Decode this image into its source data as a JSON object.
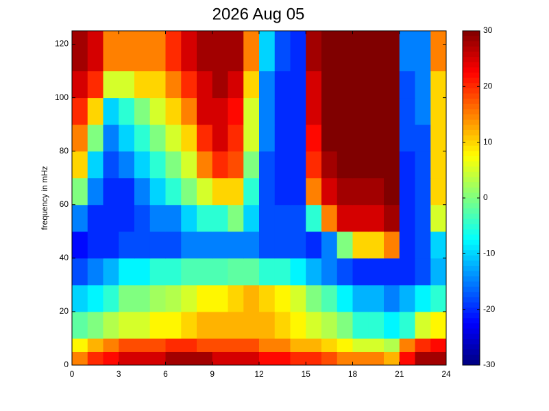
{
  "chart_data": {
    "type": "heatmap",
    "title": "2026 Aug 05",
    "y_label": "frequency in mHz",
    "xbins": [
      0,
      1,
      2,
      3,
      4,
      5,
      6,
      7,
      8,
      9,
      10,
      11,
      12,
      13,
      14,
      15,
      16,
      17,
      18,
      19,
      20,
      21,
      22,
      23,
      24
    ],
    "ybins": [
      0,
      5,
      10,
      20,
      30,
      40,
      50,
      60,
      70,
      80,
      90,
      100,
      110,
      125
    ],
    "z": [
      [
        15,
        20,
        22,
        25,
        25,
        25,
        28,
        28,
        28,
        25,
        25,
        25,
        22,
        22,
        20,
        20,
        18,
        15,
        15,
        15,
        12,
        22,
        28,
        28
      ],
      [
        8,
        12,
        15,
        18,
        18,
        18,
        20,
        20,
        18,
        18,
        18,
        18,
        15,
        15,
        12,
        12,
        10,
        8,
        5,
        5,
        3,
        15,
        20,
        22
      ],
      [
        -2,
        0,
        3,
        5,
        5,
        8,
        8,
        10,
        12,
        12,
        12,
        12,
        12,
        10,
        8,
        5,
        3,
        0,
        -5,
        -5,
        -8,
        -5,
        5,
        8
      ],
      [
        -10,
        -8,
        -5,
        0,
        0,
        2,
        3,
        5,
        8,
        8,
        10,
        12,
        10,
        8,
        5,
        0,
        -3,
        -8,
        -12,
        -12,
        -15,
        -12,
        -8,
        -5
      ],
      [
        -18,
        -15,
        -12,
        -8,
        -8,
        -5,
        -5,
        -3,
        -3,
        -3,
        -2,
        -2,
        -5,
        -5,
        -8,
        -12,
        -15,
        -18,
        -20,
        -20,
        -20,
        -20,
        -18,
        -12
      ],
      [
        -22,
        -20,
        -20,
        -18,
        -18,
        -18,
        -18,
        -15,
        -15,
        -15,
        -15,
        -15,
        -18,
        -18,
        -18,
        -20,
        -15,
        0,
        10,
        10,
        15,
        -20,
        -18,
        -10
      ],
      [
        -15,
        -20,
        -20,
        -20,
        -18,
        -15,
        -15,
        -10,
        -5,
        -5,
        0,
        -10,
        -18,
        -18,
        -18,
        -5,
        15,
        25,
        25,
        25,
        28,
        -20,
        -18,
        5
      ],
      [
        0,
        -15,
        -20,
        -20,
        -15,
        -10,
        -5,
        0,
        5,
        10,
        10,
        -5,
        -18,
        -20,
        -20,
        15,
        25,
        28,
        28,
        28,
        30,
        -20,
        -18,
        10
      ],
      [
        10,
        -10,
        -18,
        -15,
        -10,
        -5,
        0,
        5,
        15,
        20,
        18,
        0,
        -18,
        -20,
        -20,
        20,
        28,
        30,
        30,
        30,
        30,
        -20,
        -18,
        10
      ],
      [
        15,
        0,
        -15,
        -10,
        -5,
        0,
        5,
        10,
        20,
        25,
        20,
        5,
        -15,
        -20,
        -20,
        22,
        30,
        30,
        30,
        30,
        30,
        -18,
        -18,
        10
      ],
      [
        20,
        10,
        -10,
        -5,
        0,
        5,
        10,
        15,
        25,
        25,
        22,
        5,
        -15,
        -20,
        -20,
        25,
        30,
        30,
        30,
        30,
        30,
        -18,
        -15,
        10
      ],
      [
        25,
        20,
        5,
        5,
        10,
        10,
        15,
        20,
        25,
        28,
        25,
        10,
        -15,
        -20,
        -20,
        25,
        30,
        30,
        30,
        30,
        30,
        -18,
        -15,
        10
      ],
      [
        28,
        25,
        15,
        15,
        15,
        15,
        20,
        25,
        28,
        28,
        28,
        15,
        -10,
        -18,
        -20,
        28,
        30,
        30,
        30,
        30,
        30,
        -15,
        -15,
        15
      ]
    ],
    "xlim": [
      0,
      24
    ],
    "xticks": [
      0,
      3,
      6,
      9,
      12,
      15,
      18,
      21,
      24
    ],
    "ylim": [
      0,
      125
    ],
    "yticks": [
      0,
      20,
      40,
      60,
      80,
      100,
      120
    ],
    "colormap": "jet",
    "clim": [
      -30,
      30
    ],
    "cticks": [
      -30,
      -20,
      -10,
      0,
      10,
      20,
      30
    ]
  }
}
